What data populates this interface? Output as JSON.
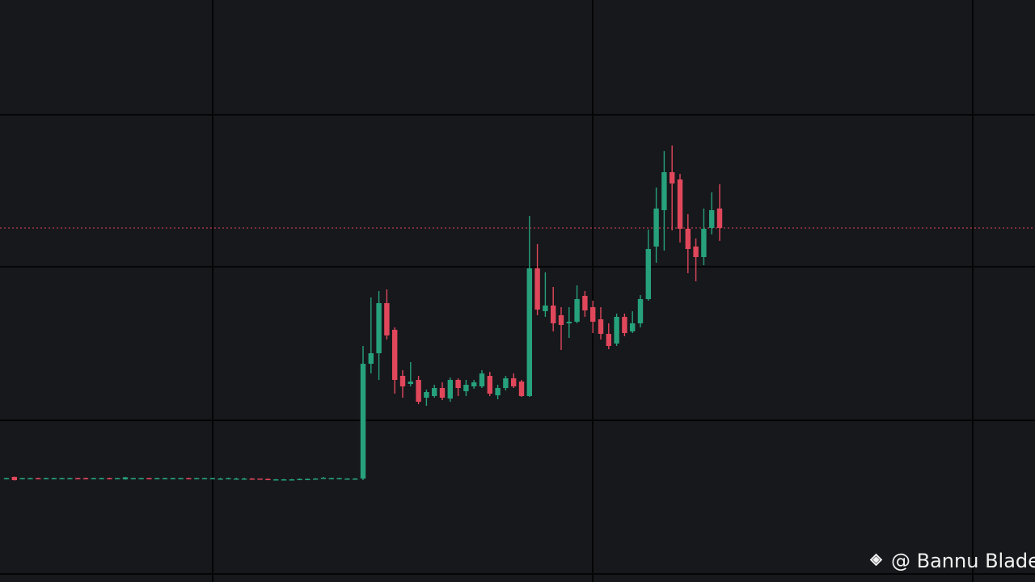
{
  "chart_data": {
    "type": "candlestick",
    "ylim": [
      0,
      720
    ],
    "up_color": "#26a17b",
    "down_color": "#e0475b",
    "open": [
      128,
      130,
      128,
      128,
      128.5,
      128,
      128,
      128,
      128,
      128.5,
      128.5,
      128,
      128,
      128.5,
      128,
      127,
      128,
      128,
      128.5,
      128,
      128,
      128,
      128,
      128.5,
      128,
      128,
      128,
      128,
      128,
      128,
      128,
      128,
      128,
      127.5,
      127,
      127,
      127,
      127,
      127,
      127.5,
      128,
      128,
      128,
      128,
      128,
      128,
      270,
      283,
      345,
      312,
      255,
      245,
      250,
      228,
      230,
      240,
      227,
      250,
      236,
      242,
      242,
      255,
      231,
      240,
      252,
      248,
      230,
      388,
      335,
      342,
      330,
      320,
      322,
      354,
      340,
      325,
      307,
      295,
      328,
      310,
      320,
      350,
      415,
      460,
      507,
      498,
      437,
      415,
      402,
      438,
      462
    ],
    "high": [
      129,
      130.5,
      129,
      129,
      129,
      129,
      129,
      129,
      129,
      129,
      129,
      129,
      129,
      129,
      129,
      130,
      129,
      129,
      129,
      129,
      129,
      129,
      129,
      129,
      129,
      129,
      129,
      129,
      129,
      129,
      129,
      128.5,
      128,
      128,
      127.5,
      127.5,
      127.5,
      128,
      128,
      128.5,
      130,
      129,
      129,
      128.5,
      128.5,
      292,
      352,
      360,
      362,
      315,
      262,
      272,
      255,
      238,
      244,
      247,
      253,
      252,
      250,
      250,
      262,
      260,
      244,
      255,
      258,
      250,
      453,
      418,
      383,
      365,
      340,
      340,
      367,
      360,
      348,
      340,
      320,
      332,
      332,
      335,
      355,
      436,
      488,
      533,
      540,
      505,
      455,
      425,
      462,
      482,
      492
    ],
    "low": [
      127.5,
      125.5,
      127.5,
      127.5,
      127.5,
      127.5,
      127.5,
      127.5,
      127.5,
      127.5,
      127.5,
      127.5,
      127.5,
      127.5,
      127.5,
      126.5,
      127.5,
      127.5,
      127.5,
      127.5,
      127.5,
      127.5,
      127.5,
      127.5,
      127.5,
      127.5,
      127.5,
      127.5,
      127.5,
      127.5,
      127.5,
      127,
      127,
      126.5,
      126.5,
      126.5,
      126.5,
      126.5,
      127,
      127,
      127.5,
      127.5,
      127.5,
      127.5,
      127.5,
      126,
      258,
      250,
      300,
      233,
      228,
      242,
      220,
      218,
      228,
      225,
      223,
      230,
      230,
      239,
      240,
      230,
      226,
      237,
      240,
      229,
      229,
      330,
      328,
      310,
      287,
      302,
      320,
      328,
      308,
      300,
      288,
      292,
      304,
      308,
      315,
      348,
      395,
      410,
      435,
      420,
      382,
      372,
      392,
      430,
      422
    ],
    "close": [
      128.5,
      126,
      128.5,
      128.5,
      128,
      128.5,
      128.5,
      128.5,
      128.5,
      128,
      128,
      128.5,
      128.5,
      128,
      128.5,
      129.5,
      128.5,
      128.5,
      128,
      128.5,
      128.5,
      128.5,
      128.5,
      128,
      128.5,
      128.5,
      128.5,
      128,
      128.5,
      128,
      128,
      127.5,
      127.5,
      127,
      127,
      127,
      127,
      127.5,
      127.5,
      128,
      129,
      128.5,
      128.5,
      128,
      128,
      270,
      283,
      345,
      305,
      250,
      242,
      248,
      223,
      235,
      240,
      228,
      250,
      240,
      244,
      247,
      258,
      233,
      240,
      252,
      242,
      230,
      388,
      337,
      342,
      320,
      318,
      322,
      350,
      336,
      322,
      307,
      292,
      328,
      308,
      320,
      350,
      412,
      462,
      507,
      493,
      437,
      412,
      402,
      437,
      460,
      438
    ]
  },
  "watermark": "@ Bannu Blade"
}
